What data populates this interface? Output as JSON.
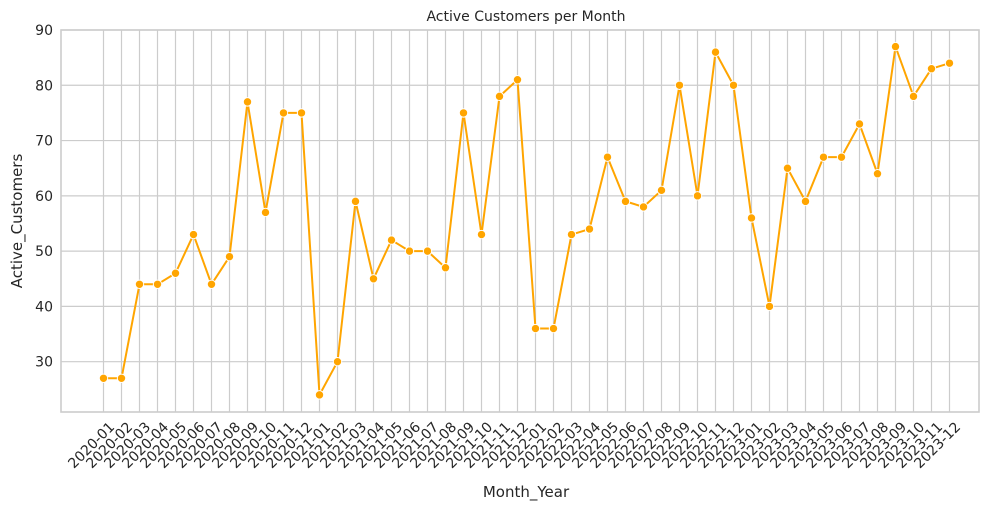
{
  "chart_data": {
    "type": "line",
    "title": "Active Customers per Month",
    "xlabel": "Month_Year",
    "ylabel": "Active_Customers",
    "ylim": [
      20.9,
      90
    ],
    "yticks": [
      30,
      40,
      50,
      60,
      70,
      80,
      90
    ],
    "grid": true,
    "marker": "circle",
    "color": "#FFA500",
    "categories": [
      "2020-01",
      "2020-02",
      "2020-03",
      "2020-04",
      "2020-05",
      "2020-06",
      "2020-07",
      "2020-08",
      "2020-09",
      "2020-10",
      "2020-11",
      "2020-12",
      "2021-01",
      "2021-02",
      "2021-03",
      "2021-04",
      "2021-05",
      "2021-06",
      "2021-07",
      "2021-08",
      "2021-09",
      "2021-10",
      "2021-11",
      "2021-12",
      "2022-01",
      "2022-02",
      "2022-03",
      "2022-04",
      "2022-05",
      "2022-06",
      "2022-07",
      "2022-08",
      "2022-09",
      "2022-10",
      "2022-11",
      "2022-12",
      "2023-01",
      "2023-02",
      "2023-03",
      "2023-04",
      "2023-05",
      "2023-06",
      "2023-07",
      "2023-08",
      "2023-09",
      "2023-10",
      "2023-11",
      "2023-12"
    ],
    "values": [
      27,
      27,
      44,
      44,
      46,
      53,
      44,
      49,
      77,
      57,
      75,
      75,
      24,
      30,
      59,
      45,
      52,
      50,
      50,
      47,
      75,
      53,
      78,
      81,
      36,
      36,
      53,
      54,
      67,
      59,
      58,
      61,
      80,
      60,
      86,
      80,
      56,
      40,
      65,
      59,
      67,
      67,
      73,
      64,
      87,
      78,
      83,
      84
    ]
  }
}
